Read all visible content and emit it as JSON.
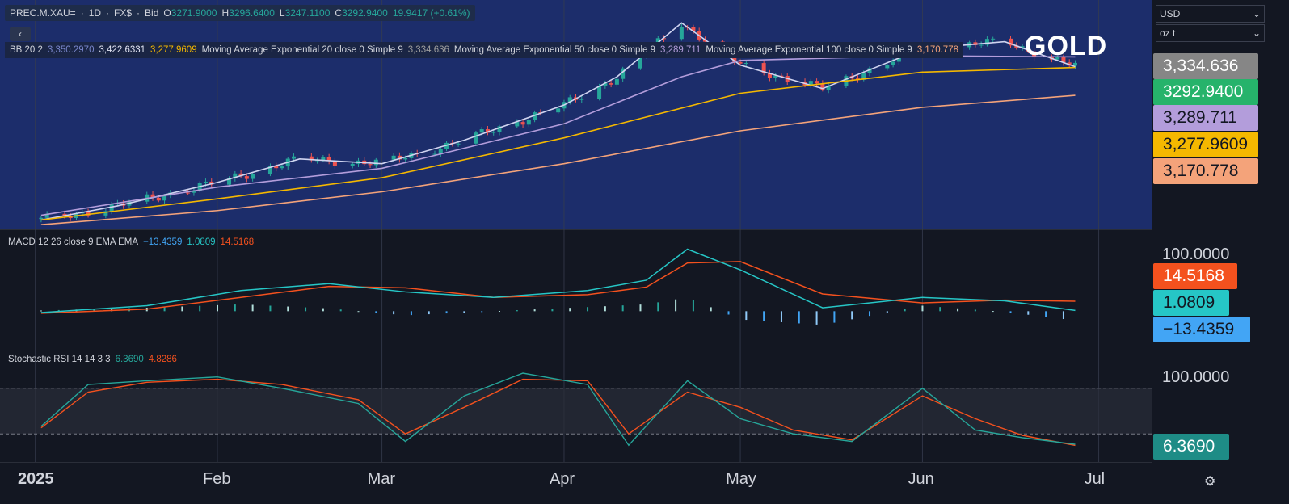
{
  "symbol_bar": {
    "symbol": "PREC.M.XAU=",
    "interval": "1D",
    "source": "FX$",
    "price_type": "Bid",
    "o_label": "O",
    "open": "3271.9000",
    "h_label": "H",
    "high": "3296.6400",
    "l_label": "L",
    "low": "3247.1100",
    "c_label": "C",
    "close": "3292.9400",
    "change": "19.9417 (+0.61%)"
  },
  "collapse_icon": "chevron-left-icon",
  "overlay_legend": {
    "bb_label": "BB 20 2",
    "bb_basis": "3,350.2970",
    "bb_upper": "3,422.6331",
    "bb_lower": "3,277.9609",
    "ema20_label": "Moving Average Exponential 20 close 0 Simple 9",
    "ema20_value": "3,334.636",
    "ema50_label": "Moving Average Exponential 50 close 0 Simple 9",
    "ema50_value": "3,289.711",
    "ema100_label": "Moving Average Exponential 100 close 0 Simple 9",
    "ema100_value": "3,170.778"
  },
  "watermark": "GOLD",
  "currency_select": "USD",
  "unit_select": "oz t",
  "price_tags": [
    {
      "value": "3,334.636",
      "bg": "#868686",
      "fg": "#ffffff"
    },
    {
      "value": "3292.9400",
      "bg": "#26b36b",
      "fg": "#ffffff"
    },
    {
      "value": "3,289.711",
      "bg": "#b39ddb",
      "fg": "#131722"
    },
    {
      "value": "3,277.9609",
      "bg": "#f5b800",
      "fg": "#131722"
    },
    {
      "value": "3,170.778",
      "bg": "#f4a37a",
      "fg": "#131722"
    }
  ],
  "macd_legend": {
    "label": "MACD 12 26 close 9 EMA EMA",
    "histogram": "−13.4359",
    "macd": "1.0809",
    "signal": "14.5168"
  },
  "macd_scale": "100.0000",
  "macd_tags": [
    {
      "value": "14.5168",
      "bg": "#f4511e",
      "fg": "#ffffff"
    },
    {
      "value": "1.0809",
      "bg": "#26c6c6",
      "fg": "#131722"
    },
    {
      "value": "−13.4359",
      "bg": "#42a5f5",
      "fg": "#131722"
    }
  ],
  "stoch_legend": {
    "label": "Stochastic RSI 14 14 3 3",
    "k": "6.3690",
    "d": "4.8286"
  },
  "stoch_scale": "100.0000",
  "stoch_tag": {
    "value": "6.3690",
    "bg": "#1e8c86",
    "fg": "#ffffff"
  },
  "time_axis": [
    "2025",
    "Feb",
    "Mar",
    "Apr",
    "May",
    "Jun",
    "Jul"
  ],
  "settings_icon": "gear-icon",
  "colors": {
    "up": "#26a69a",
    "down": "#ef5350",
    "bb_upper": "#d0d4f0",
    "bb_basis": "#5a6bd8",
    "ema20": "#b39ddb",
    "ema50": "#f5b800",
    "ema100": "#f4a37a",
    "macd_line": "#26c6c6",
    "signal_line": "#f4511e",
    "stoch_k": "#26a69a",
    "stoch_d": "#f4511e"
  },
  "chart_data": {
    "type": "line",
    "title": "GOLD",
    "symbol": "PREC.M.XAU=",
    "xlabel": "",
    "ylabel": "",
    "x_ticks": [
      "2025",
      "Feb",
      "Mar",
      "Apr",
      "May",
      "Jun",
      "Jul"
    ],
    "price_ylim": [
      2600,
      3550
    ],
    "series": [
      {
        "x": [
          "2025-01-02",
          "2025-01-15",
          "2025-02-01",
          "2025-02-15",
          "2025-03-01",
          "2025-03-15",
          "2025-04-01",
          "2025-04-10",
          "2025-04-21",
          "2025-05-01",
          "2025-05-15",
          "2025-06-01",
          "2025-06-15",
          "2025-06-27"
        ],
        "values": [
          2640,
          2700,
          2800,
          2900,
          2880,
          2980,
          3130,
          3250,
          3480,
          3300,
          3200,
          3370,
          3400,
          3293
        ]
      },
      {
        "x": [
          "2025-01-02",
          "2025-02-01",
          "2025-03-01",
          "2025-04-01",
          "2025-04-21",
          "2025-05-01",
          "2025-06-01",
          "2025-06-27"
        ],
        "values": [
          2660,
          2780,
          2860,
          3050,
          3250,
          3320,
          3340,
          3335
        ]
      },
      {
        "x": [
          "2025-01-02",
          "2025-02-01",
          "2025-03-01",
          "2025-04-01",
          "2025-05-01",
          "2025-06-01",
          "2025-06-27"
        ],
        "values": [
          2640,
          2730,
          2820,
          2990,
          3180,
          3270,
          3290
        ]
      },
      {
        "x": [
          "2025-01-02",
          "2025-02-01",
          "2025-03-01",
          "2025-04-01",
          "2025-05-01",
          "2025-06-01",
          "2025-06-27"
        ],
        "values": [
          2620,
          2680,
          2760,
          2880,
          3020,
          3120,
          3171
        ]
      }
    ],
    "macd": {
      "ylim": [
        -50,
        100
      ],
      "x": [
        "2025-01-02",
        "2025-01-20",
        "2025-02-05",
        "2025-02-20",
        "2025-03-05",
        "2025-03-20",
        "2025-04-05",
        "2025-04-15",
        "2025-04-22",
        "2025-05-01",
        "2025-05-15",
        "2025-06-01",
        "2025-06-15",
        "2025-06-27"
      ],
      "macd": [
        -2,
        8,
        30,
        40,
        28,
        20,
        30,
        45,
        90,
        60,
        5,
        20,
        15,
        1.0809
      ],
      "signal": [
        -3,
        3,
        20,
        36,
        34,
        20,
        24,
        35,
        70,
        72,
        25,
        12,
        16,
        14.5168
      ],
      "histogram": [
        1,
        5,
        10,
        4,
        -6,
        0,
        6,
        10,
        20,
        -12,
        -20,
        8,
        -1,
        -13.4359
      ]
    },
    "stoch_rsi": {
      "ylim": [
        0,
        100
      ],
      "bands": [
        20,
        80
      ],
      "x": [
        "2025-01-02",
        "2025-01-10",
        "2025-01-20",
        "2025-02-01",
        "2025-02-12",
        "2025-02-25",
        "2025-03-05",
        "2025-03-15",
        "2025-03-25",
        "2025-04-05",
        "2025-04-12",
        "2025-04-22",
        "2025-05-01",
        "2025-05-10",
        "2025-05-20",
        "2025-06-01",
        "2025-06-10",
        "2025-06-18",
        "2025-06-27"
      ],
      "k": [
        30,
        85,
        90,
        95,
        80,
        60,
        10,
        70,
        100,
        85,
        5,
        90,
        40,
        20,
        10,
        80,
        25,
        15,
        6.369
      ],
      "d": [
        28,
        75,
        88,
        92,
        85,
        65,
        20,
        55,
        92,
        90,
        20,
        75,
        55,
        25,
        12,
        70,
        40,
        18,
        4.8286
      ]
    }
  }
}
